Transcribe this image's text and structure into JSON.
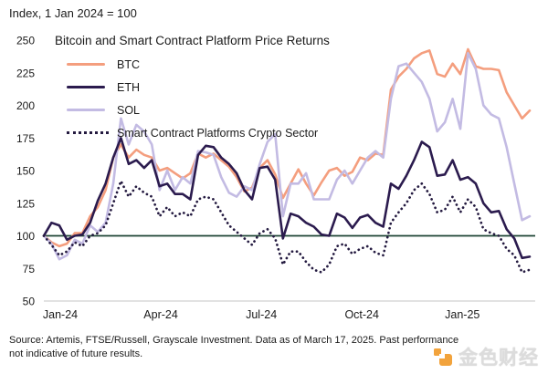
{
  "header": {
    "index_label": "Index, 1 Jan 2024 = 100"
  },
  "title": "Bitcoin and Smart Contract Platform Price Returns",
  "legend": {
    "items": [
      {
        "label": "BTC",
        "color": "#F49E7E",
        "style": "solid"
      },
      {
        "label": "ETH",
        "color": "#2B1B4E",
        "style": "solid"
      },
      {
        "label": "SOL",
        "color": "#C3BBE3",
        "style": "solid"
      },
      {
        "label": "Smart Contract Platforms Crypto Sector",
        "color": "#241A40",
        "style": "dotted"
      }
    ]
  },
  "chart_data": {
    "type": "line",
    "title": "Bitcoin and Smart Contract Platform Price Returns",
    "index_note": "Index, 1 Jan 2024 = 100",
    "x_start": "2024-01-01",
    "x_end": "2025-03-17",
    "x_interval": "weekly",
    "xticks": [
      "Jan-24",
      "Apr-24",
      "Jul-24",
      "Oct-24",
      "Jan-25"
    ],
    "xtick_month_offsets": [
      0,
      3,
      6,
      9,
      12
    ],
    "months_span": 14.5,
    "yticks": [
      50,
      75,
      100,
      125,
      150,
      175,
      200,
      225,
      250
    ],
    "ylim": [
      50,
      250
    ],
    "reference_line": 100,
    "grid": false,
    "legend_position": "top-left",
    "series": [
      {
        "name": "BTC",
        "color": "#F49E7E",
        "style": "solid",
        "values": [
          100,
          95,
          92,
          94,
          102,
          102,
          115,
          122,
          135,
          160,
          170,
          160,
          166,
          162,
          160,
          150,
          152,
          148,
          144,
          148,
          163,
          160,
          163,
          158,
          153,
          145,
          134,
          137,
          152,
          158,
          147,
          129,
          140,
          151,
          140,
          131,
          141,
          150,
          152,
          146,
          149,
          160,
          158,
          163,
          162,
          212,
          222,
          228,
          236,
          240,
          242,
          224,
          222,
          232,
          224,
          243,
          230,
          228,
          228,
          227,
          210,
          200,
          190,
          196
        ]
      },
      {
        "name": "SOL",
        "color": "#C3BBE3",
        "style": "solid",
        "values": [
          100,
          94,
          82,
          85,
          97,
          94,
          108,
          103,
          110,
          140,
          190,
          170,
          185,
          180,
          170,
          135,
          150,
          135,
          145,
          140,
          165,
          164,
          162,
          145,
          133,
          130,
          138,
          135,
          155,
          172,
          178,
          115,
          140,
          140,
          148,
          128,
          128,
          128,
          143,
          150,
          140,
          150,
          160,
          165,
          160,
          205,
          230,
          232,
          225,
          218,
          205,
          180,
          187,
          205,
          182,
          240,
          228,
          200,
          193,
          190,
          168,
          140,
          112,
          115
        ]
      },
      {
        "name": "ETH",
        "color": "#2B1B4E",
        "style": "solid",
        "values": [
          100,
          110,
          108,
          97,
          100,
          101,
          110,
          127,
          140,
          160,
          175,
          155,
          158,
          152,
          158,
          138,
          140,
          132,
          132,
          128,
          162,
          169,
          168,
          160,
          155,
          148,
          135,
          128,
          152,
          153,
          143,
          98,
          117,
          115,
          110,
          107,
          101,
          100,
          117,
          114,
          106,
          114,
          116,
          110,
          107,
          140,
          136,
          146,
          158,
          172,
          168,
          146,
          147,
          158,
          143,
          145,
          140,
          125,
          118,
          119,
          105,
          98,
          83,
          84
        ]
      },
      {
        "name": "Smart Contract Platforms Crypto Sector",
        "color": "#241A40",
        "style": "dotted",
        "values": [
          100,
          93,
          85,
          88,
          95,
          92,
          100,
          102,
          108,
          125,
          142,
          130,
          138,
          133,
          130,
          115,
          122,
          115,
          118,
          115,
          128,
          130,
          128,
          118,
          108,
          103,
          98,
          93,
          102,
          105,
          98,
          78,
          88,
          88,
          80,
          74,
          72,
          78,
          92,
          94,
          86,
          90,
          92,
          87,
          85,
          110,
          118,
          125,
          135,
          140,
          132,
          118,
          120,
          130,
          118,
          128,
          122,
          105,
          102,
          100,
          90,
          85,
          72,
          74
        ]
      }
    ],
    "colors": {
      "reference_line": "#1E4434",
      "axis_line": "#D9D9D9",
      "tick_text": "#1a1a1a"
    }
  },
  "footer": {
    "source": "Source: Artemis, FTSE/Russell, Grayscale Investment. Data as of March 17, 2025. Past performance not indicative of future results."
  },
  "watermark": {
    "text": "金色财经",
    "text_color": "#DCDCDC",
    "logo_color": "#F2A33C"
  }
}
